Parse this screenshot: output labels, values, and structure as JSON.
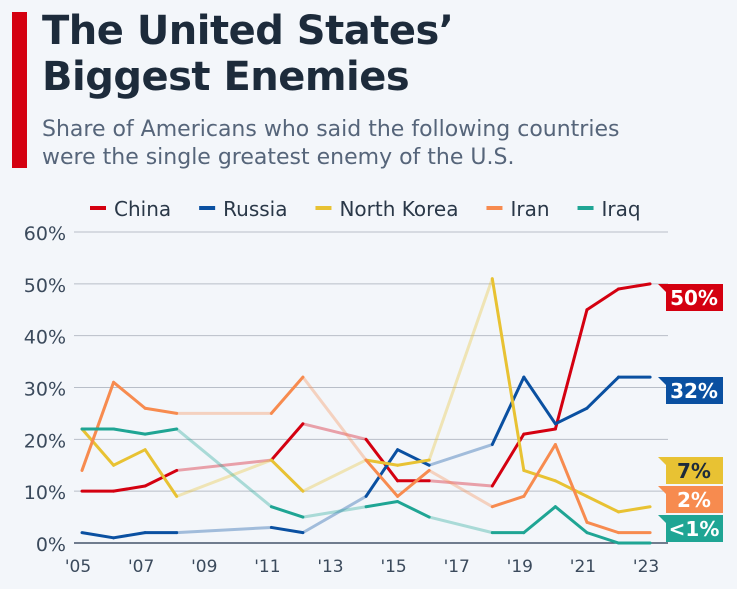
{
  "chart_data": {
    "type": "line",
    "title": "The United States’ Biggest Enemies",
    "title_lines": [
      "The United States’",
      "Biggest Enemies"
    ],
    "subtitle_lines": [
      "Share of Americans who said the following countries",
      "were the single greatest enemy of the U.S."
    ],
    "x": [
      2005,
      2006,
      2007,
      2008,
      2011,
      2012,
      2014,
      2015,
      2016,
      2018,
      2019,
      2020,
      2021,
      2022,
      2023
    ],
    "gap_after": [
      2008,
      2012,
      2016
    ],
    "xticks": [
      "'05",
      "'07",
      "'09",
      "'11",
      "'13",
      "'15",
      "'17",
      "'19",
      "'21",
      "'23"
    ],
    "xtick_years": [
      2005,
      2007,
      2009,
      2011,
      2013,
      2015,
      2017,
      2019,
      2021,
      2023
    ],
    "yticks": [
      "0%",
      "10%",
      "20%",
      "30%",
      "40%",
      "50%",
      "60%"
    ],
    "ylim": [
      0,
      60
    ],
    "grid": true,
    "legend_position": "top",
    "series": [
      {
        "name": "China",
        "color": "#d40010",
        "values": [
          10,
          10,
          11,
          14,
          16,
          23,
          20,
          12,
          12,
          11,
          21,
          22,
          45,
          49,
          50
        ],
        "end_label": "50%",
        "label_text_color": "#ffffff"
      },
      {
        "name": "Russia",
        "color": "#0a50a1",
        "values": [
          2,
          1,
          2,
          2,
          3,
          2,
          9,
          18,
          15,
          19,
          32,
          23,
          26,
          32,
          32
        ],
        "end_label": "32%",
        "label_text_color": "#ffffff"
      },
      {
        "name": "North Korea",
        "color": "#e8c233",
        "values": [
          22,
          15,
          18,
          9,
          16,
          10,
          16,
          15,
          16,
          51,
          14,
          12,
          9,
          6,
          7
        ],
        "end_label": "7%",
        "label_text_color": "#1d2b3b"
      },
      {
        "name": "Iran",
        "color": "#f78b4f",
        "values": [
          14,
          31,
          26,
          25,
          25,
          32,
          16,
          9,
          14,
          7,
          9,
          19,
          4,
          2,
          2
        ],
        "end_label": "2%",
        "label_text_color": "#ffffff"
      },
      {
        "name": "Iraq",
        "color": "#1fa594",
        "values": [
          22,
          22,
          21,
          22,
          7,
          5,
          7,
          8,
          5,
          2,
          2,
          7,
          2,
          0,
          0
        ],
        "end_label": "<1%",
        "label_text_color": "#ffffff"
      }
    ]
  }
}
